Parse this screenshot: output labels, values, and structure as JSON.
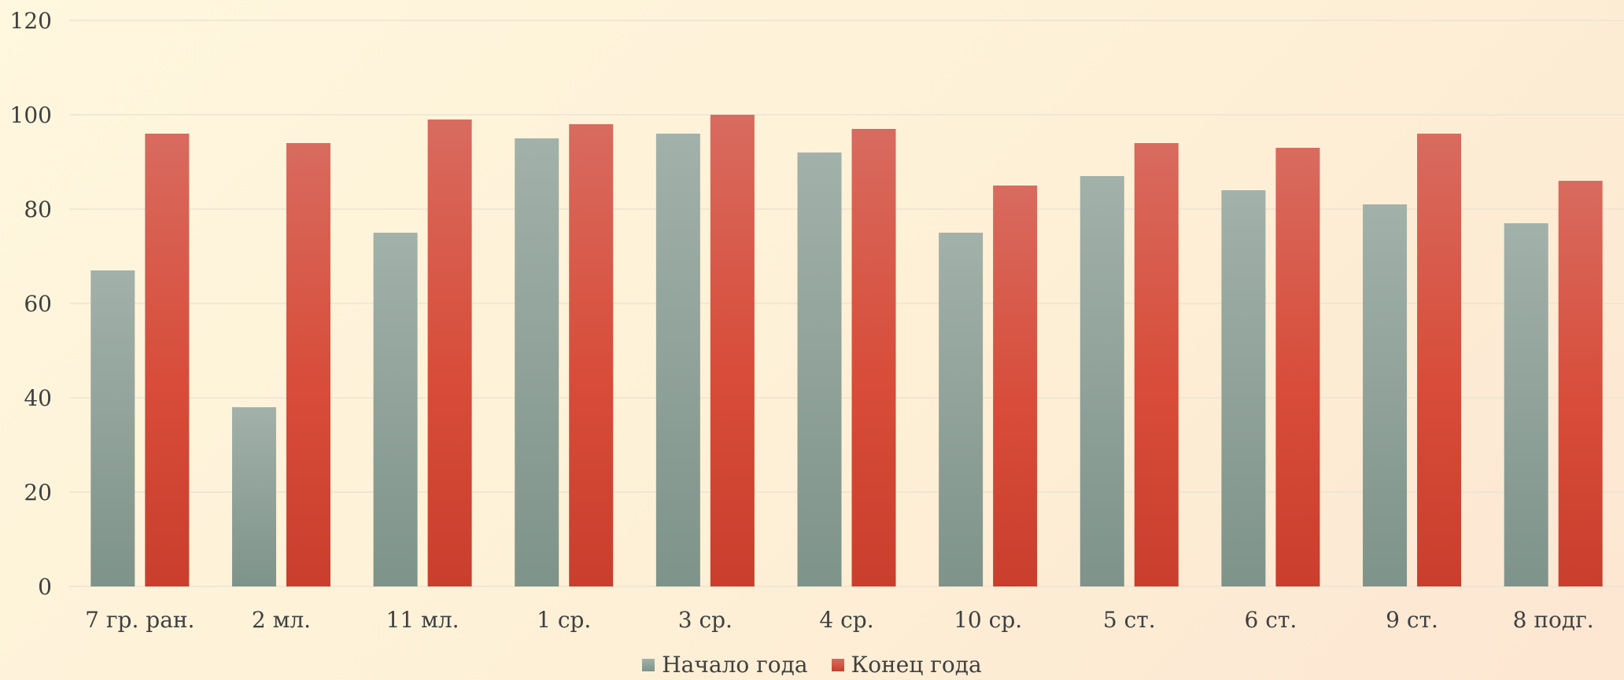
{
  "chart_data": {
    "type": "bar",
    "title": "",
    "xlabel": "",
    "ylabel": "",
    "ylim": [
      0,
      120
    ],
    "yticks": [
      0,
      20,
      40,
      60,
      80,
      100,
      120
    ],
    "grid": true,
    "legend_position": "bottom",
    "categories": [
      "7 гр. ран.",
      "2 мл.",
      "11 мл.",
      "1 ср.",
      "3 ср.",
      "4 ср.",
      "10 ср.",
      "5 ст.",
      "6 ст.",
      "9 ст.",
      "8 подг."
    ],
    "series": [
      {
        "name": "Начало года",
        "color": "#8fa097",
        "values": [
          67,
          38,
          75,
          95,
          96,
          92,
          75,
          87,
          84,
          81,
          77
        ]
      },
      {
        "name": "Конец года",
        "color": "#d6483a",
        "values": [
          96,
          94,
          99,
          98,
          100,
          97,
          85,
          94,
          93,
          96,
          86
        ]
      }
    ]
  }
}
